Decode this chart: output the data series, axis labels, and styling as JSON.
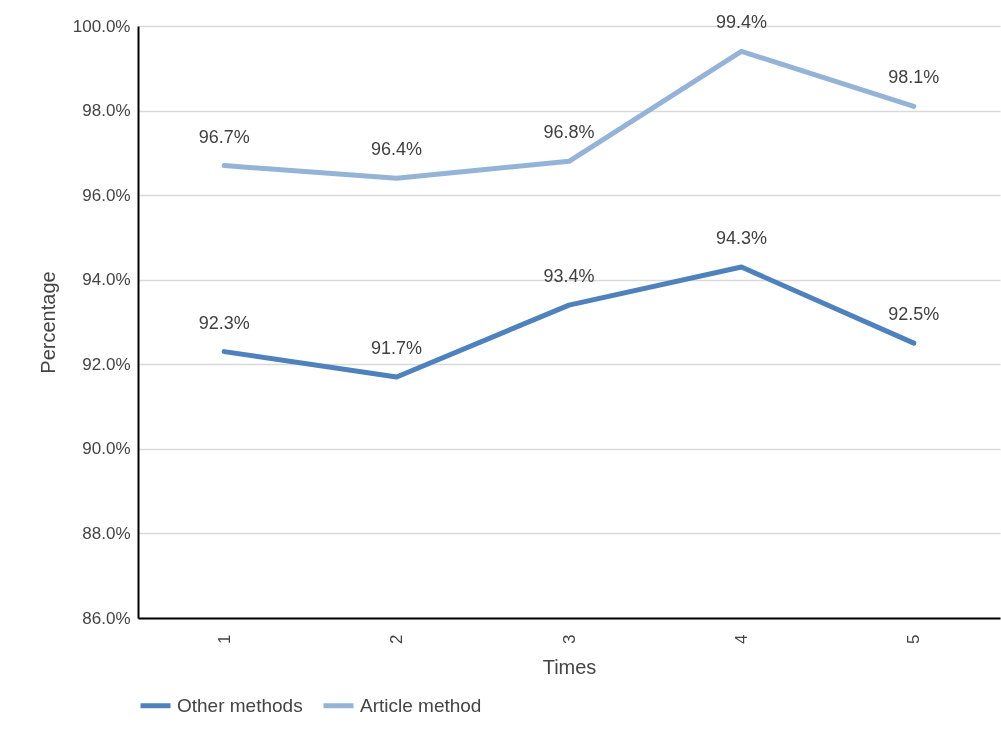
{
  "chart_data": {
    "type": "line",
    "xlabel": "Times",
    "ylabel": "Percentage",
    "categories": [
      "1",
      "2",
      "3",
      "4",
      "5"
    ],
    "series": [
      {
        "name": "Other methods",
        "color": "#4f81bd",
        "values": [
          92.3,
          91.7,
          93.4,
          94.3,
          92.5
        ],
        "value_labels": [
          "92.3%",
          "91.7%",
          "93.4%",
          "94.3%",
          "92.5%"
        ]
      },
      {
        "name": "Article method",
        "color": "#95b3d7",
        "values": [
          96.7,
          96.4,
          96.8,
          99.4,
          98.1
        ],
        "value_labels": [
          "96.7%",
          "96.4%",
          "96.8%",
          "99.4%",
          "98.1%"
        ]
      }
    ],
    "ylim": [
      86,
      100
    ],
    "yticks": [
      {
        "value": 86,
        "label": "86.0%"
      },
      {
        "value": 88,
        "label": "88.0%"
      },
      {
        "value": 90,
        "label": "90.0%"
      },
      {
        "value": 92,
        "label": "92.0%"
      },
      {
        "value": 94,
        "label": "94.0%"
      },
      {
        "value": 96,
        "label": "96.0%"
      },
      {
        "value": 98,
        "label": "98.0%"
      },
      {
        "value": 100,
        "label": "100.0%"
      }
    ],
    "grid": "y",
    "legend": "bottom"
  }
}
